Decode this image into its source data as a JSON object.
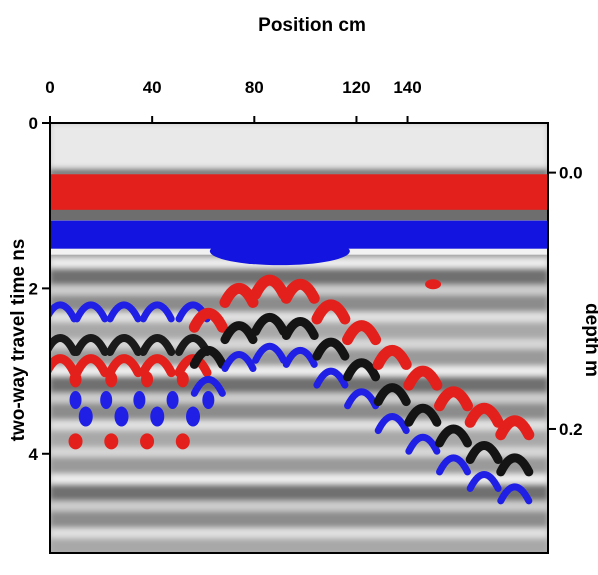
{
  "chart_data": {
    "type": "heatmap",
    "title": "",
    "xlabel": "Position cm",
    "ylabel_left": "two-way travel time ns",
    "ylabel_right": "depth m",
    "x_ticks": [
      {
        "value": 0,
        "label": "0"
      },
      {
        "value": 40,
        "label": "40"
      },
      {
        "value": 80,
        "label": "80"
      },
      {
        "value": 120,
        "label": "120"
      },
      {
        "value": 140,
        "label": "140"
      }
    ],
    "y_left_ticks": [
      {
        "value": 0,
        "label": "0"
      },
      {
        "value": 2,
        "label": "2"
      },
      {
        "value": 4,
        "label": "4"
      }
    ],
    "y_right_ticks": [
      {
        "value": 0.0,
        "label": "0.0"
      },
      {
        "value": 0.2,
        "label": "0.2"
      }
    ],
    "xlim": [
      0,
      195
    ],
    "ylim_time_ns": [
      0,
      5.2
    ],
    "colormap": {
      "low": "#0000ff",
      "mid_dark": "#1a1a1a",
      "mid_light": "#e6e6e6",
      "high": "#ff2020"
    },
    "features": {
      "surface_red_band_ns": 0.85,
      "surface_blue_band_ns": 1.35,
      "hyperbola_rows": [
        {
          "label": "upper",
          "apex_positions_cm": [
            0,
            12,
            25,
            38,
            52
          ],
          "apex_time_ns": 2.45
        },
        {
          "label": "lower",
          "apex_positions_cm": [
            10,
            24,
            38,
            52
          ],
          "apex_time_ns": 3.85
        }
      ],
      "hyperbola_diagonal": {
        "apex_positions_cm": [
          62,
          74,
          86,
          98,
          110,
          122,
          134,
          146,
          158,
          170,
          182
        ],
        "apex_times_ns": [
          2.3,
          2.0,
          1.9,
          1.95,
          2.2,
          2.45,
          2.75,
          3.0,
          3.25,
          3.45,
          3.6
        ]
      }
    }
  }
}
